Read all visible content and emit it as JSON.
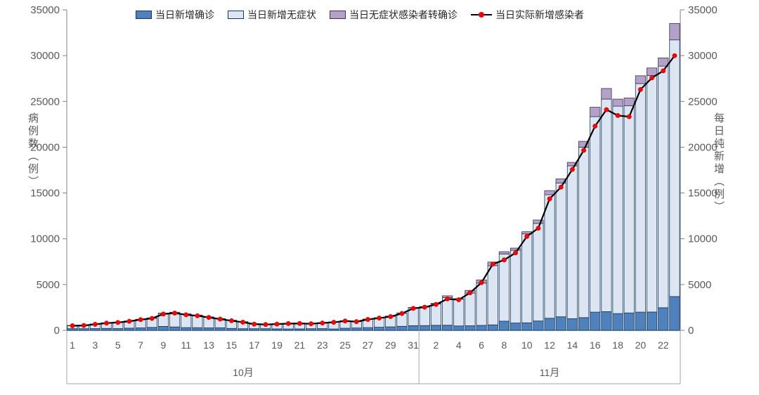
{
  "chart_data": {
    "type": "bar",
    "subtype": "stacked-bars-with-line-overlay",
    "title": "",
    "left_axis": {
      "label": "病例数（例）",
      "min": 0,
      "max": 35000,
      "tick_step": 5000
    },
    "right_axis": {
      "label": "每日纯新增（例）",
      "min": 0,
      "max": 35000,
      "tick_step": 5000
    },
    "legend": [
      {
        "label": "当日新增确诊",
        "type": "box",
        "color": "#4f81bd",
        "border": "#17375e"
      },
      {
        "label": "当日新增无症状",
        "type": "box",
        "color": "#dce6f2",
        "border": "#17375e"
      },
      {
        "label": "当日无症状感染者转确诊",
        "type": "box",
        "color": "#b3a2c7",
        "border": "#403152"
      },
      {
        "label": "当日实际新增感染者",
        "type": "line",
        "line_color": "#000000",
        "marker_color": "#fe0000"
      }
    ],
    "x_axis": {
      "groups": [
        {
          "label": "10月",
          "days": 31
        },
        {
          "label": "11月",
          "days": 23
        }
      ],
      "tick_labels": [
        "1",
        "",
        "3",
        "",
        "5",
        "",
        "7",
        "",
        "9",
        "",
        "11",
        "",
        "13",
        "",
        "15",
        "",
        "17",
        "",
        "19",
        "",
        "21",
        "",
        "23",
        "",
        "25",
        "",
        "27",
        "",
        "29",
        "",
        "31",
        "",
        "2",
        "",
        "4",
        "",
        "6",
        "",
        "8",
        "",
        "10",
        "",
        "12",
        "",
        "14",
        "",
        "16",
        "",
        "18",
        "",
        "20",
        "",
        "22",
        ""
      ]
    },
    "categories": [
      "10/1",
      "10/2",
      "10/3",
      "10/4",
      "10/5",
      "10/6",
      "10/7",
      "10/8",
      "10/9",
      "10/10",
      "10/11",
      "10/12",
      "10/13",
      "10/14",
      "10/15",
      "10/16",
      "10/17",
      "10/18",
      "10/19",
      "10/20",
      "10/21",
      "10/22",
      "10/23",
      "10/24",
      "10/25",
      "10/26",
      "10/27",
      "10/28",
      "10/29",
      "10/30",
      "10/31",
      "11/1",
      "11/2",
      "11/3",
      "11/4",
      "11/5",
      "11/6",
      "11/7",
      "11/8",
      "11/9",
      "11/10",
      "11/11",
      "11/12",
      "11/13",
      "11/14",
      "11/15",
      "11/16",
      "11/17",
      "11/18",
      "11/19",
      "11/20",
      "11/21",
      "11/22",
      "11/23"
    ],
    "series": [
      {
        "name": "当日新增确诊",
        "role": "bar-bottom",
        "color": "#4f81bd",
        "border": "#17375e",
        "values": [
          180,
          180,
          190,
          210,
          190,
          240,
          270,
          320,
          430,
          370,
          300,
          290,
          270,
          280,
          210,
          180,
          180,
          180,
          160,
          150,
          160,
          180,
          190,
          150,
          230,
          260,
          300,
          340,
          380,
          440,
          510,
          520,
          550,
          560,
          480,
          500,
          540,
          600,
          1000,
          800,
          820,
          1020,
          1320,
          1480,
          1270,
          1390,
          1990,
          2040,
          1830,
          1900,
          1990,
          2000,
          2470,
          3690
        ]
      },
      {
        "name": "当日新增无症状",
        "role": "bar-middle",
        "color": "#dce6f2",
        "border": "#17375e",
        "values": [
          340,
          370,
          490,
          600,
          690,
          770,
          920,
          1010,
          1400,
          1560,
          1450,
          1340,
          1170,
          980,
          870,
          740,
          520,
          480,
          540,
          610,
          610,
          560,
          630,
          750,
          810,
          710,
          910,
          1020,
          1150,
          1430,
          1940,
          2020,
          2330,
          3010,
          2920,
          3560,
          4620,
          6460,
          7340,
          7940,
          9715,
          10655,
          13490,
          14610,
          16690,
          18605,
          21345,
          23215,
          22650,
          22635,
          24960,
          25830,
          26380,
          28030
        ]
      },
      {
        "name": "当日无症状感染者转确诊",
        "role": "bar-top",
        "color": "#b3a2c7",
        "border": "#403152",
        "values": [
          20,
          20,
          20,
          20,
          20,
          20,
          20,
          30,
          50,
          50,
          50,
          40,
          30,
          30,
          30,
          30,
          20,
          20,
          20,
          20,
          20,
          20,
          20,
          20,
          20,
          20,
          20,
          20,
          30,
          30,
          50,
          60,
          70,
          200,
          60,
          300,
          350,
          400,
          250,
          240,
          235,
          375,
          450,
          450,
          380,
          645,
          1025,
          1155,
          770,
          845,
          850,
          820,
          900,
          1790
        ]
      },
      {
        "name": "当日实际新增感染者",
        "role": "line",
        "color": "#fe0000",
        "line_color": "#000000",
        "values": [
          500,
          530,
          660,
          790,
          860,
          990,
          1170,
          1300,
          1780,
          1880,
          1700,
          1590,
          1410,
          1230,
          1050,
          890,
          680,
          640,
          680,
          740,
          750,
          720,
          800,
          880,
          1020,
          950,
          1190,
          1340,
          1500,
          1840,
          2400,
          2530,
          2830,
          3430,
          3340,
          4100,
          5210,
          7230,
          7690,
          8460,
          10260,
          11150,
          14360,
          15640,
          17570,
          19660,
          22300,
          24100,
          23460,
          23330,
          26300,
          27570,
          28340,
          29990
        ]
      }
    ],
    "grid": "off",
    "legend_position": "top-center"
  }
}
